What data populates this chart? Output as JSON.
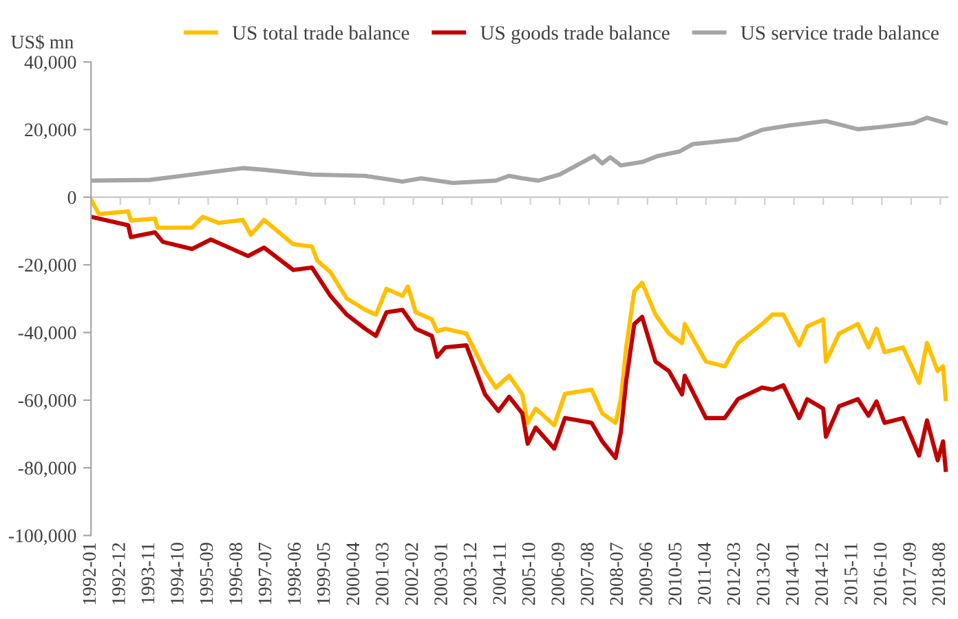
{
  "chart_data": {
    "type": "line",
    "ylabel": "US$ mn",
    "legend": "top",
    "ref_lines": [
      {
        "axis": "y",
        "value": 0,
        "color": "#d0d0d0"
      }
    ],
    "ylim": [
      -100000,
      40000
    ],
    "yticks": [
      {
        "value": -100000,
        "label": "-100,000"
      },
      {
        "value": -80000,
        "label": "-80,000"
      },
      {
        "value": -60000,
        "label": "-60,000"
      },
      {
        "value": -40000,
        "label": "-40,000"
      },
      {
        "value": -20000,
        "label": "-20,000"
      },
      0,
      {
        "value": 20000,
        "label": "20,000"
      },
      {
        "value": 40000,
        "label": "40,000"
      }
    ],
    "xlim": [
      "1992-01",
      "2018-11"
    ],
    "xticks": [
      "1992-01",
      "1992-12",
      "1993-11",
      "1994-10",
      "1995-09",
      "1996-08",
      "1997-07",
      "1998-06",
      "1999-05",
      "2000-04",
      "2001-03",
      "2002-02",
      "2003-01",
      "2003-12",
      "2004-11",
      "2005-10",
      "2006-09",
      "2007-08",
      "2008-07",
      "2009-06",
      "2010-05",
      "2011-04",
      "2012-03",
      "2013-02",
      "2014-01",
      "2014-12",
      "2015-11",
      "2016-10",
      "2017-09",
      "2018-08"
    ],
    "series": [
      {
        "name": "US total trade balance",
        "color": "#ffc000",
        "x": [
          "1992-01",
          "1992-04",
          "1993-03",
          "1993-04",
          "1994-01",
          "1994-02",
          "1995-03",
          "1995-07",
          "1996-01",
          "1996-10",
          "1997-01",
          "1997-06",
          "1998-05",
          "1998-12",
          "1999-02",
          "1999-07",
          "2000-01",
          "2000-08",
          "2000-12",
          "2001-04",
          "2001-10",
          "2001-12",
          "2002-03",
          "2002-09",
          "2002-11",
          "2003-02",
          "2003-10",
          "2004-05",
          "2004-09",
          "2005-02",
          "2005-07",
          "2005-09",
          "2005-12",
          "2006-07",
          "2006-11",
          "2007-09",
          "2008-01",
          "2008-06",
          "2008-08",
          "2008-10",
          "2009-01",
          "2009-04",
          "2009-09",
          "2010-02",
          "2010-07",
          "2010-08",
          "2011-04",
          "2011-11",
          "2012-04",
          "2013-01",
          "2013-05",
          "2013-09",
          "2014-03",
          "2014-06",
          "2014-12",
          "2015-01",
          "2015-06",
          "2016-01",
          "2016-05",
          "2016-08",
          "2016-11",
          "2017-06",
          "2017-12",
          "2018-03",
          "2018-07",
          "2018-09",
          "2018-10"
        ],
        "values": [
          -700,
          -5000,
          -4200,
          -6900,
          -6300,
          -9000,
          -9000,
          -5800,
          -7600,
          -6700,
          -11100,
          -6700,
          -13900,
          -14600,
          -18800,
          -22200,
          -29900,
          -33300,
          -34700,
          -27100,
          -29200,
          -26400,
          -34000,
          -36100,
          -39600,
          -38900,
          -40300,
          -51400,
          -56300,
          -52800,
          -58300,
          -66700,
          -62500,
          -67400,
          -58100,
          -56900,
          -63900,
          -66700,
          -59700,
          -44400,
          -27800,
          -25300,
          -34700,
          -40300,
          -43100,
          -37500,
          -48600,
          -50000,
          -43100,
          -37500,
          -34700,
          -34700,
          -43800,
          -38200,
          -36100,
          -48600,
          -40300,
          -37500,
          -44400,
          -38900,
          -45800,
          -44400,
          -54900,
          -43100,
          -51400,
          -50000,
          -59700
        ]
      },
      {
        "name": "US goods trade balance",
        "color": "#c00000",
        "x": [
          "1992-01",
          "1993-03",
          "1993-04",
          "1994-01",
          "1994-04",
          "1995-03",
          "1995-10",
          "1996-12",
          "1997-06",
          "1998-05",
          "1998-12",
          "1999-07",
          "2000-01",
          "2000-08",
          "2000-12",
          "2001-04",
          "2001-10",
          "2002-03",
          "2002-09",
          "2002-11",
          "2003-02",
          "2003-10",
          "2004-05",
          "2004-10",
          "2005-02",
          "2005-07",
          "2005-09",
          "2005-12",
          "2006-07",
          "2006-11",
          "2007-09",
          "2008-01",
          "2008-06",
          "2008-08",
          "2008-10",
          "2009-01",
          "2009-04",
          "2009-09",
          "2010-02",
          "2010-07",
          "2010-08",
          "2011-04",
          "2011-11",
          "2012-04",
          "2013-01",
          "2013-05",
          "2013-09",
          "2014-03",
          "2014-06",
          "2014-12",
          "2015-01",
          "2015-06",
          "2016-01",
          "2016-05",
          "2016-08",
          "2016-11",
          "2017-06",
          "2017-12",
          "2018-03",
          "2018-07",
          "2018-09",
          "2018-10"
        ],
        "values": [
          -5800,
          -8300,
          -11800,
          -10400,
          -13200,
          -15300,
          -12500,
          -17400,
          -14900,
          -21500,
          -20800,
          -29200,
          -34700,
          -38900,
          -41000,
          -34000,
          -33300,
          -38900,
          -41000,
          -47200,
          -44400,
          -43800,
          -58300,
          -63200,
          -59000,
          -63900,
          -72900,
          -68100,
          -74300,
          -65300,
          -66700,
          -72200,
          -77100,
          -69400,
          -54200,
          -37500,
          -35400,
          -48600,
          -51400,
          -58300,
          -52800,
          -65300,
          -65300,
          -59700,
          -56300,
          -56900,
          -55600,
          -65300,
          -59700,
          -62500,
          -70800,
          -61800,
          -59700,
          -64600,
          -60400,
          -66700,
          -65300,
          -76400,
          -66000,
          -77800,
          -72200,
          -80600
        ]
      },
      {
        "name": "US service trade balance",
        "color": "#a5a5a5",
        "x": [
          "1992-01",
          "1993-11",
          "1995-10",
          "1996-10",
          "1997-06",
          "1998-12",
          "2000-08",
          "2001-10",
          "2002-05",
          "2003-05",
          "2004-09",
          "2005-02",
          "2005-07",
          "2006-01",
          "2006-09",
          "2007-10",
          "2008-01",
          "2008-04",
          "2008-08",
          "2009-04",
          "2009-10",
          "2010-06",
          "2010-11",
          "2011-08",
          "2012-04",
          "2013-01",
          "2013-11",
          "2015-01",
          "2016-01",
          "2016-10",
          "2017-10",
          "2018-03",
          "2018-10"
        ],
        "values": [
          4900,
          5100,
          7400,
          8600,
          8100,
          6700,
          6300,
          4600,
          5600,
          4200,
          4900,
          6300,
          5600,
          4900,
          6700,
          12200,
          10000,
          11800,
          9400,
          10400,
          12200,
          13500,
          15700,
          16400,
          17100,
          19900,
          21200,
          22500,
          20100,
          20800,
          21900,
          23500,
          21900
        ]
      }
    ]
  }
}
